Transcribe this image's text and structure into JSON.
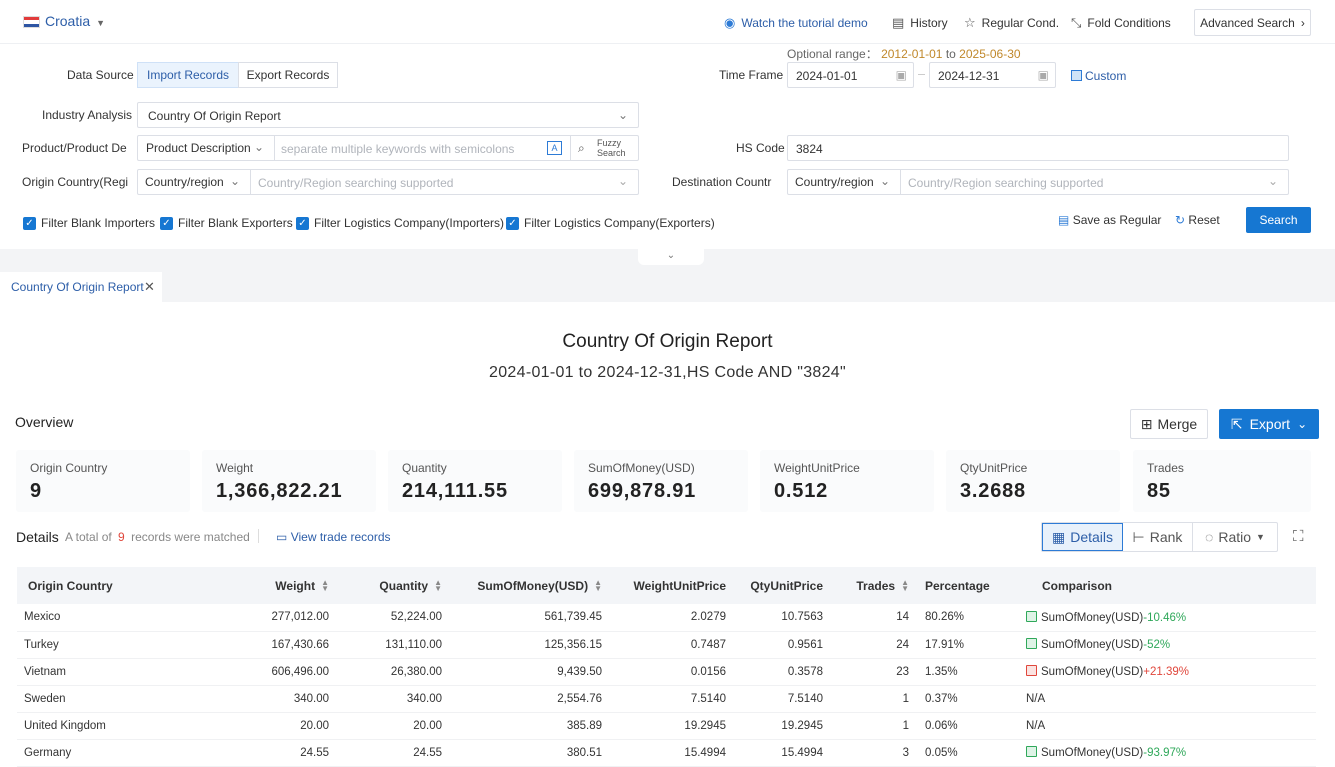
{
  "header": {
    "country": "Croatia",
    "tutorial_link": "Watch the tutorial demo",
    "history": "History",
    "regular_cond": "Regular Cond.",
    "fold_conditions": "Fold Conditions",
    "advanced_search": "Advanced Search"
  },
  "filters": {
    "data_source_label": "Data Source",
    "import_records": "Import Records",
    "export_records": "Export Records",
    "optional_range_label": "Optional range：",
    "optional_range_start": "2012-01-01",
    "optional_range_to": "to",
    "optional_range_end": "2025-06-30",
    "time_frame_label": "Time Frame",
    "date_start": "2024-01-01",
    "date_end": "2024-12-31",
    "custom": "Custom",
    "industry_analysis_label": "Industry Analysis",
    "industry_analysis_value": "Country Of Origin Report",
    "product_label": "Product/Product De",
    "product_mode": "Product Description",
    "product_placeholder": "separate multiple keywords with semicolons",
    "fuzzy_search_1": "Fuzzy",
    "fuzzy_search_2": "Search",
    "hs_code_label": "HS Code",
    "hs_code_value": "3824",
    "origin_label": "Origin Country(Regi",
    "origin_mode": "Country/region",
    "origin_placeholder": "Country/Region searching supported",
    "dest_label": "Destination Countr",
    "dest_mode": "Country/region",
    "dest_placeholder": "Country/Region searching supported",
    "cb1": "Filter Blank Importers",
    "cb2": "Filter Blank Exporters",
    "cb3": "Filter Logistics Company(Importers)",
    "cb4": "Filter Logistics Company(Exporters)",
    "save_regular": "Save as Regular",
    "reset": "Reset",
    "search": "Search"
  },
  "tab": {
    "label": "Country Of Origin Report"
  },
  "report": {
    "title": "Country Of Origin Report",
    "subtitle": "2024-01-01 to 2024-12-31,HS Code AND \"3824\""
  },
  "overview": {
    "label": "Overview",
    "merge": "Merge",
    "export": "Export",
    "cards": [
      {
        "label": "Origin Country",
        "value": "9"
      },
      {
        "label": "Weight",
        "value": "1,366,822.21"
      },
      {
        "label": "Quantity",
        "value": "214,111.55"
      },
      {
        "label": "SumOfMoney(USD)",
        "value": "699,878.91"
      },
      {
        "label": "WeightUnitPrice",
        "value": "0.512"
      },
      {
        "label": "QtyUnitPrice",
        "value": "3.2688"
      },
      {
        "label": "Trades",
        "value": "85"
      }
    ]
  },
  "details": {
    "label": "Details",
    "total_prefix": "A total of",
    "total_count": "9",
    "total_suffix": "records were matched",
    "view_records": "View trade records",
    "view_details": "Details",
    "view_rank": "Rank",
    "view_ratio": "Ratio",
    "columns": [
      "Origin Country",
      "Weight",
      "Quantity",
      "SumOfMoney(USD)",
      "WeightUnitPrice",
      "QtyUnitPrice",
      "Trades",
      "Percentage",
      "Comparison"
    ],
    "rows": [
      {
        "country": "Mexico",
        "weight": "277,012.00",
        "quantity": "52,224.00",
        "money": "561,739.45",
        "wup": "2.0279",
        "qup": "10.7563",
        "trades": "14",
        "pct": "80.26%",
        "cmp_label": "SumOfMoney(USD)",
        "cmp_val": "-10.46%",
        "dir": "down"
      },
      {
        "country": "Turkey",
        "weight": "167,430.66",
        "quantity": "131,110.00",
        "money": "125,356.15",
        "wup": "0.7487",
        "qup": "0.9561",
        "trades": "24",
        "pct": "17.91%",
        "cmp_label": "SumOfMoney(USD)",
        "cmp_val": "-52%",
        "dir": "down"
      },
      {
        "country": "Vietnam",
        "weight": "606,496.00",
        "quantity": "26,380.00",
        "money": "9,439.50",
        "wup": "0.0156",
        "qup": "0.3578",
        "trades": "23",
        "pct": "1.35%",
        "cmp_label": "SumOfMoney(USD)",
        "cmp_val": "+21.39%",
        "dir": "up"
      },
      {
        "country": "Sweden",
        "weight": "340.00",
        "quantity": "340.00",
        "money": "2,554.76",
        "wup": "7.5140",
        "qup": "7.5140",
        "trades": "1",
        "pct": "0.37%",
        "cmp_label": "N/A",
        "cmp_val": "",
        "dir": "none"
      },
      {
        "country": "United Kingdom",
        "weight": "20.00",
        "quantity": "20.00",
        "money": "385.89",
        "wup": "19.2945",
        "qup": "19.2945",
        "trades": "1",
        "pct": "0.06%",
        "cmp_label": "N/A",
        "cmp_val": "",
        "dir": "none"
      },
      {
        "country": "Germany",
        "weight": "24.55",
        "quantity": "24.55",
        "money": "380.51",
        "wup": "15.4994",
        "qup": "15.4994",
        "trades": "3",
        "pct": "0.05%",
        "cmp_label": "SumOfMoney(USD)",
        "cmp_val": "-93.97%",
        "dir": "down"
      }
    ]
  },
  "colors": {
    "accent": "#1677d2",
    "link": "#2d5ea8",
    "down": "#2fa85a",
    "up": "#e0473c"
  }
}
